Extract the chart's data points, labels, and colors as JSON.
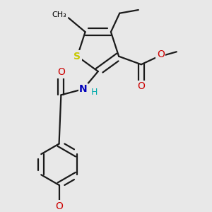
{
  "bg_color": "#e8e8e8",
  "bond_color": "#1a1a1a",
  "S_color": "#c8c800",
  "N_color": "#0000bb",
  "O_color": "#cc0000",
  "H_color": "#00aaaa",
  "bond_lw": 1.6,
  "figsize": [
    3.0,
    3.0
  ],
  "dpi": 100,
  "xlim": [
    -0.5,
    3.5
  ],
  "ylim": [
    -3.8,
    1.2
  ]
}
